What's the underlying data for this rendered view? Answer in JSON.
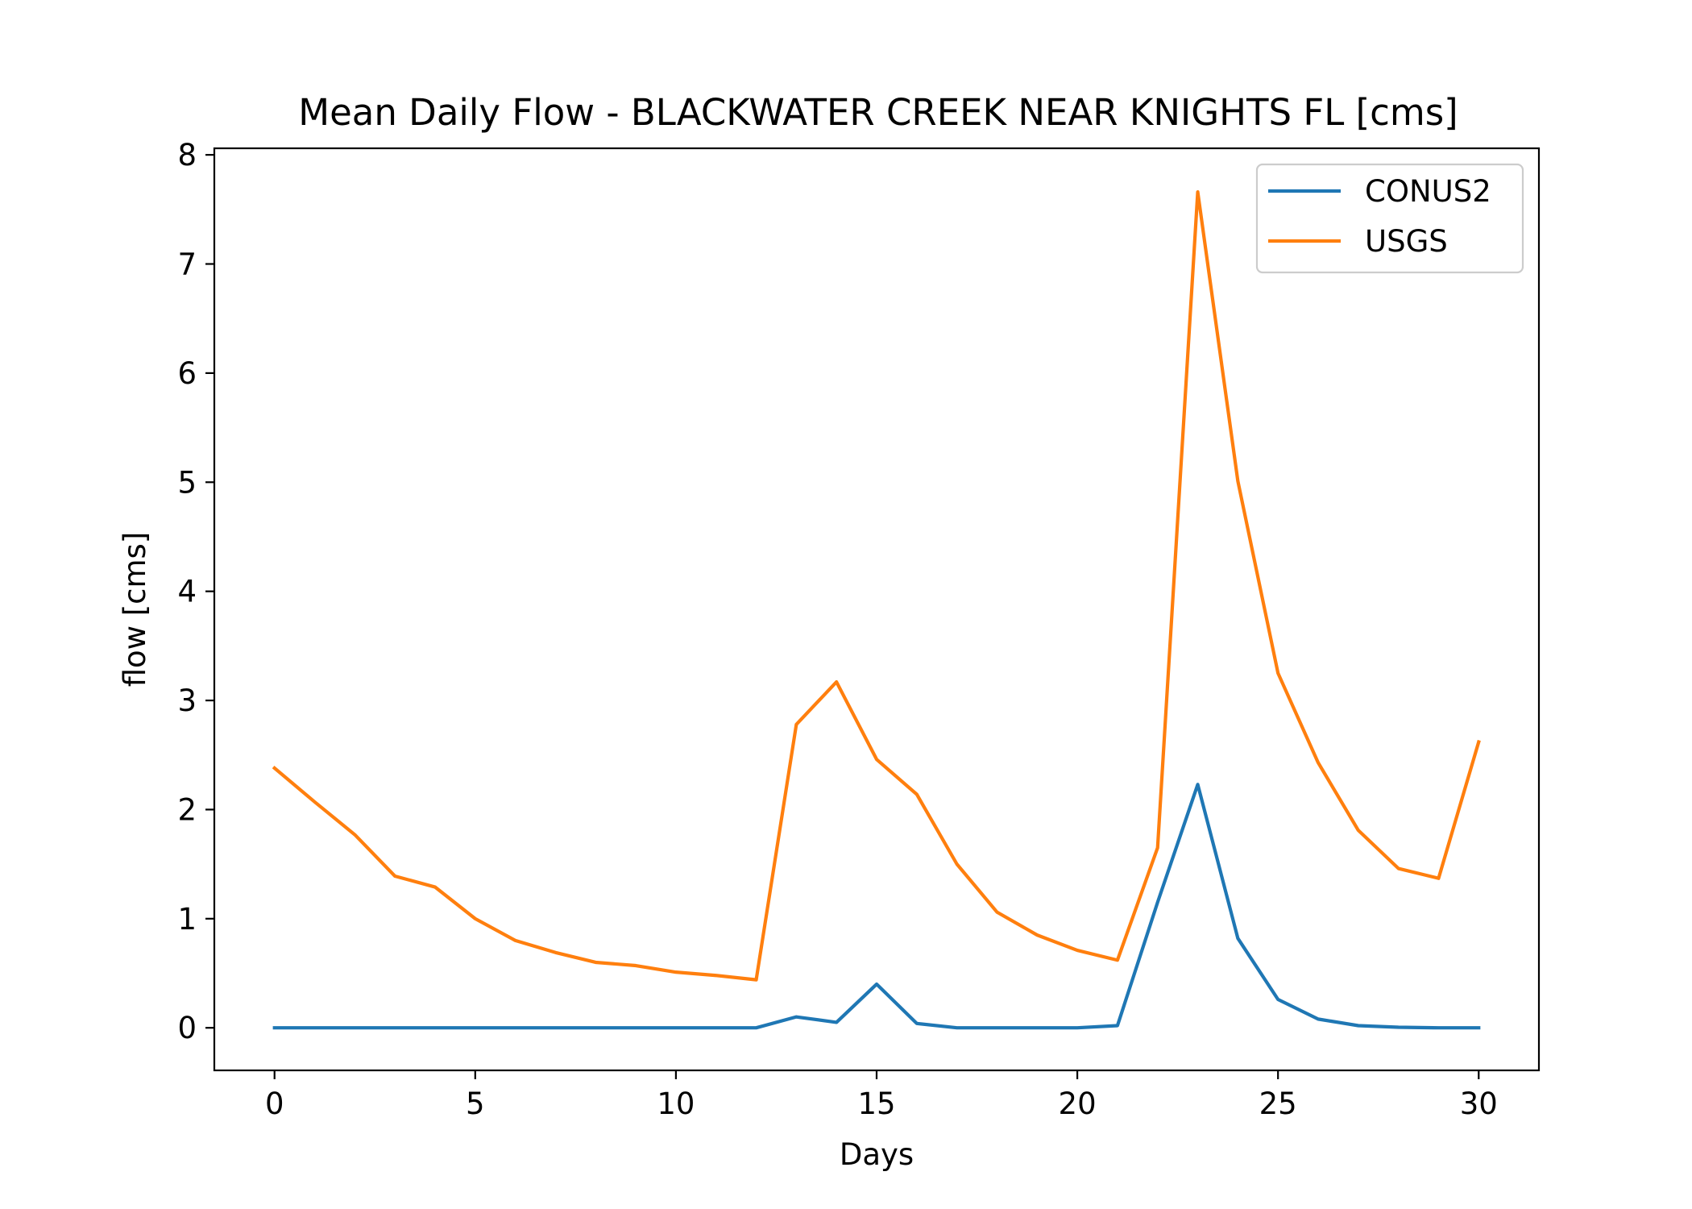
{
  "chart_data": {
    "type": "line",
    "title": "Mean Daily Flow - BLACKWATER CREEK NEAR KNIGHTS FL [cms]",
    "xlabel": "Days",
    "ylabel": "flow [cms]",
    "xlim": [
      -1.5,
      31.5
    ],
    "ylim": [
      -0.39,
      8.06
    ],
    "xticks": [
      0,
      5,
      10,
      15,
      20,
      25,
      30
    ],
    "yticks": [
      0,
      1,
      2,
      3,
      4,
      5,
      6,
      7,
      8
    ],
    "grid": false,
    "legend_position": "top-right",
    "x": [
      0,
      1,
      2,
      3,
      4,
      5,
      6,
      7,
      8,
      9,
      10,
      11,
      12,
      13,
      14,
      15,
      16,
      17,
      18,
      19,
      20,
      21,
      22,
      23,
      24,
      25,
      26,
      27,
      28,
      29,
      30
    ],
    "series": [
      {
        "name": "CONUS2",
        "color": "#1f77b4",
        "values": [
          0,
          0,
          0,
          0,
          0,
          0,
          0,
          0,
          0,
          0,
          0,
          0,
          0,
          0.1,
          0.05,
          0.4,
          0.04,
          0,
          0,
          0,
          0,
          0.02,
          1.15,
          2.23,
          0.82,
          0.26,
          0.08,
          0.02,
          0.005,
          0,
          0
        ]
      },
      {
        "name": "USGS",
        "color": "#ff7f0e",
        "values": [
          2.38,
          2.07,
          1.77,
          1.39,
          1.29,
          1.0,
          0.8,
          0.69,
          0.6,
          0.57,
          0.51,
          0.48,
          0.44,
          2.78,
          3.17,
          2.46,
          2.14,
          1.5,
          1.06,
          0.85,
          0.71,
          0.62,
          1.65,
          7.66,
          5.01,
          3.25,
          2.43,
          1.81,
          1.46,
          1.37,
          2.62
        ]
      }
    ]
  }
}
